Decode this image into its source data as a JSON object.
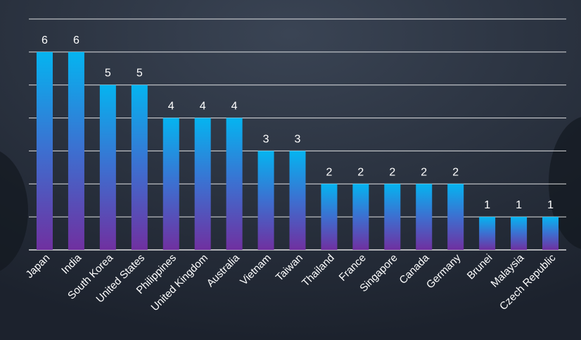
{
  "chart_data": {
    "type": "bar",
    "categories": [
      "Japan",
      "India",
      "South Korea",
      "United States",
      "Philippines",
      "United Kingdom",
      "Australia",
      "Vietnam",
      "Taiwan",
      "Thailand",
      "France",
      "Singapore",
      "Canada",
      "Germany",
      "Brunei",
      "Malaysia",
      "Czech Republic"
    ],
    "values": [
      6,
      6,
      5,
      5,
      4,
      4,
      4,
      3,
      3,
      2,
      2,
      2,
      2,
      2,
      1,
      1,
      1
    ],
    "title": "",
    "xlabel": "",
    "ylabel": "",
    "ylim": [
      0,
      7
    ],
    "grid": true,
    "legend": "none",
    "colors": {
      "bar_top": "#05b4f0",
      "bar_bottom": "#7030a0",
      "grid": "#ffffff",
      "background": "#222a37",
      "text": "#ffffff"
    }
  }
}
